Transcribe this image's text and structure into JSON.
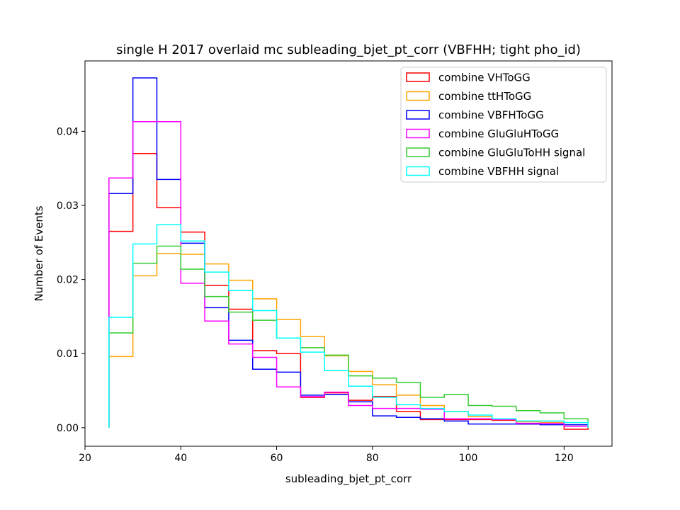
{
  "chart_data": {
    "type": "histogram-step",
    "title": "single H 2017 overlaid mc subleading_bjet_pt_corr (VBFHH; tight pho_id)",
    "xlabel": "subleading_bjet_pt_corr",
    "ylabel": "Number of Events",
    "xlim": [
      20,
      130
    ],
    "ylim": [
      -0.0025,
      0.0495
    ],
    "xticks": [
      20,
      40,
      60,
      80,
      100,
      120
    ],
    "yticks": [
      0.0,
      0.01,
      0.02,
      0.03,
      0.04
    ],
    "ytick_labels": [
      "0.00",
      "0.01",
      "0.02",
      "0.03",
      "0.04"
    ],
    "grid": false,
    "legend_position": "top-right",
    "bin_edges": [
      25,
      30,
      35,
      40,
      45,
      50,
      55,
      60,
      65,
      70,
      75,
      80,
      85,
      90,
      95,
      100,
      105,
      110,
      115,
      120,
      125
    ],
    "series": [
      {
        "name": "combine VHToGG",
        "color": "#ff0000",
        "values": [
          0.0265,
          0.037,
          0.0297,
          0.0264,
          0.0192,
          0.016,
          0.0104,
          0.01,
          0.0041,
          0.0047,
          0.0037,
          0.0042,
          0.0022,
          0.0011,
          0.0011,
          0.0011,
          0.001,
          0.0005,
          0.0006,
          -0.0002
        ]
      },
      {
        "name": "combine ttHToGG",
        "color": "#ffa500",
        "values": [
          0.0096,
          0.0205,
          0.0235,
          0.0234,
          0.0221,
          0.0199,
          0.0174,
          0.0146,
          0.0123,
          0.0097,
          0.0076,
          0.0058,
          0.0044,
          0.003,
          0.0022,
          0.0015,
          0.0011,
          0.0008,
          0.0007,
          0.0004
        ]
      },
      {
        "name": "combine VBFHToGG",
        "color": "#0000ff",
        "values": [
          0.0316,
          0.0472,
          0.0335,
          0.0249,
          0.0162,
          0.0118,
          0.0079,
          0.0075,
          0.0044,
          0.0045,
          0.0035,
          0.0016,
          0.0014,
          0.0012,
          0.0009,
          0.0005,
          0.0005,
          0.0005,
          0.0004,
          0.0004
        ]
      },
      {
        "name": "combine GluGluHToGG",
        "color": "#ff00ff",
        "values": [
          0.0337,
          0.0413,
          0.0413,
          0.0195,
          0.0144,
          0.0113,
          0.0095,
          0.0055,
          0.0042,
          0.0048,
          0.003,
          0.0026,
          0.0026,
          0.0025,
          0.0012,
          0.0012,
          0.0011,
          0.0006,
          0.0006,
          0.0002
        ]
      },
      {
        "name": "combine GluGluToHH signal",
        "color": "#32cd32",
        "values": [
          0.0128,
          0.0222,
          0.0245,
          0.0214,
          0.0177,
          0.0156,
          0.0145,
          0.0121,
          0.0108,
          0.0098,
          0.007,
          0.0067,
          0.0061,
          0.0041,
          0.0045,
          0.003,
          0.0029,
          0.0023,
          0.002,
          0.0012
        ]
      },
      {
        "name": "combine VBFHH signal",
        "color": "#00ffff",
        "values": [
          0.0149,
          0.0248,
          0.0274,
          0.0252,
          0.021,
          0.0185,
          0.0158,
          0.0121,
          0.0102,
          0.0077,
          0.0056,
          0.0041,
          0.0031,
          0.0026,
          0.0022,
          0.0017,
          0.0012,
          0.0009,
          0.0009,
          0.0007
        ]
      }
    ]
  }
}
